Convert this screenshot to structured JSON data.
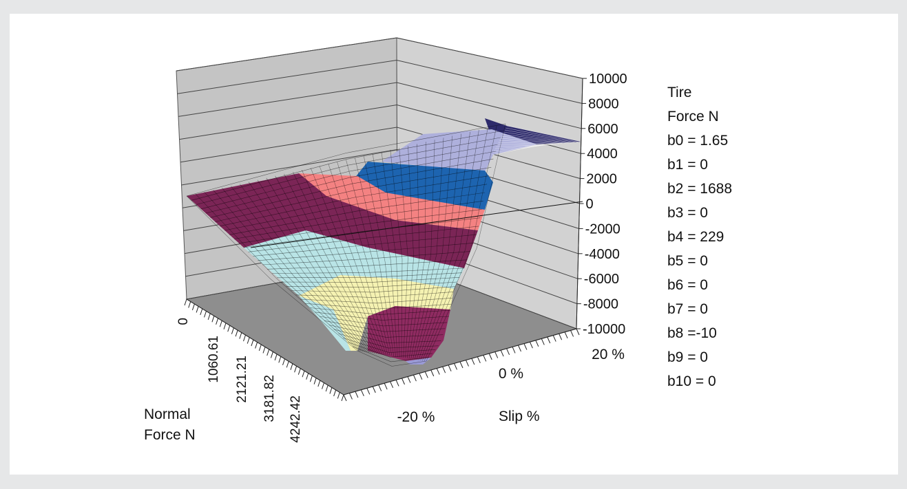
{
  "chart_data": {
    "type": "surface",
    "z_axis": {
      "label_lines": [
        "Tire",
        "Force N"
      ],
      "ticks": [
        10000,
        8000,
        6000,
        4000,
        2000,
        0,
        -2000,
        -4000,
        -6000,
        -8000,
        -10000
      ],
      "range": [
        -10000,
        10000
      ]
    },
    "x_axis": {
      "label": "Slip %",
      "ticks": [
        "-20 %",
        "0 %",
        "20 %"
      ],
      "range": [
        -20,
        20
      ]
    },
    "y_axis": {
      "label_lines": [
        "Normal",
        "Force N"
      ],
      "ticks": [
        "0",
        "1060.61",
        "2121.21",
        "3181.82",
        "4242.42"
      ],
      "range": [
        0,
        4242.42
      ]
    },
    "parameters": [
      "b0 = 1.65",
      "b1 = 0",
      "b2 = 1688",
      "b3 = 0",
      "b4 = 229",
      "b5 = 0",
      "b6 = 0",
      "b7 = 0",
      "b8 =-10",
      "b9 = 0",
      "b10 = 0"
    ],
    "band_colors": [
      "#2d2a6b",
      "#aeb0dc",
      "#1d64b0",
      "#f48282",
      "#7b2556",
      "#b9e4e6",
      "#f5f2b2",
      "#8f2b61"
    ],
    "floor_color": "#8e8e8e",
    "wall_color": "#c4c4c4"
  }
}
